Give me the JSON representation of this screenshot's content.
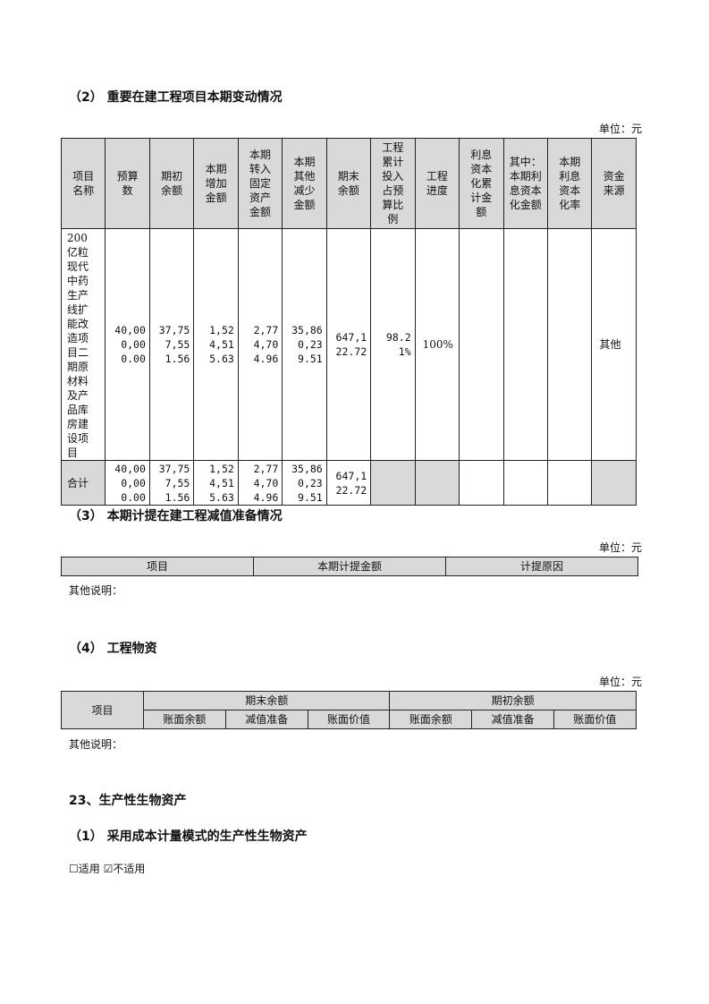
{
  "section2": {
    "title": "（2） 重要在建工程项目本期变动情况",
    "unit": "单位：元",
    "headers": [
      "项目名称",
      "预算数",
      "期初余额",
      "本期增加金额",
      "本期转入固定资产金额",
      "本期其他减少金额",
      "期末余额",
      "工程累计投入占预算比例",
      "工程进度",
      "利息资本化累计金额",
      "其中：本期利息资本化金额",
      "本期利息资本化率",
      "资金来源"
    ],
    "rows": [
      {
        "name": "200亿粒现代中药生产线扩能改造项目二期原材料及产品库房建设项目",
        "budget": "40,000,000.00",
        "opening": "37,757,551.56",
        "increase": "1,524,515.63",
        "transfer": "2,774,704.96",
        "other_decrease": "35,860,239.51",
        "closing": "647,122.72",
        "ratio": "98.21%",
        "progress": "100%",
        "interest_cum": "",
        "interest_cur": "",
        "interest_rate": "",
        "source": "其他"
      }
    ],
    "total": {
      "name": "合计",
      "budget": "40,000,000.00",
      "opening": "37,757,551.56",
      "increase": "1,524,515.63",
      "transfer": "2,774,704.96",
      "other_decrease": "35,860,239.51",
      "closing": "647,122.72"
    }
  },
  "section3": {
    "title": "（3） 本期计提在建工程减值准备情况",
    "unit": "单位：元",
    "headers": [
      "项目",
      "本期计提金额",
      "计提原因"
    ],
    "note": "其他说明："
  },
  "section4": {
    "title": "（4） 工程物资",
    "unit": "单位：元",
    "item_header": "项目",
    "group_headers": [
      "期末余额",
      "期初余额"
    ],
    "sub_headers": [
      "账面余额",
      "减值准备",
      "账面价值",
      "账面余额",
      "减值准备",
      "账面价值"
    ],
    "note": "其他说明："
  },
  "section23": {
    "title": "23、生产性生物资产",
    "sub_title": "（1） 采用成本计量模式的生产性生物资产",
    "option_applicable": "适用",
    "option_not_applicable": "不适用",
    "applicable_checked": false,
    "not_applicable_checked": true
  }
}
